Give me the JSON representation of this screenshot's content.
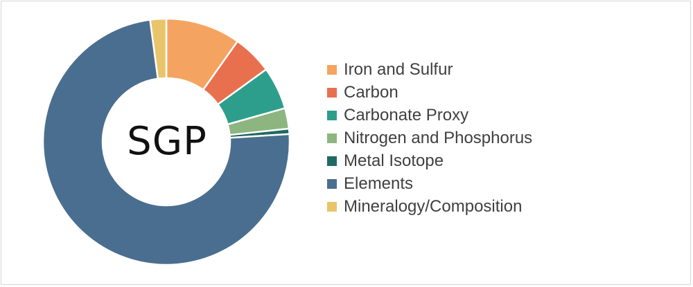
{
  "chart_data": {
    "type": "pie",
    "style": "donut",
    "center_label": "SGP",
    "legend_position": "right",
    "slices": [
      {
        "label": "Iron and Sulfur",
        "value": 9.8,
        "color": "#F4A460"
      },
      {
        "label": "Carbon",
        "value": 5.2,
        "color": "#E8704F"
      },
      {
        "label": "Carbonate Proxy",
        "value": 5.6,
        "color": "#2E9E8C"
      },
      {
        "label": "Nitrogen and Phosphorus",
        "value": 2.7,
        "color": "#8DB580"
      },
      {
        "label": "Metal Isotope",
        "value": 0.7,
        "color": "#1F6B63"
      },
      {
        "label": "Elements",
        "value": 73.9,
        "color": "#4A6E8F"
      },
      {
        "label": "Mineralogy/Composition",
        "value": 2.1,
        "color": "#E9C46A"
      }
    ]
  }
}
